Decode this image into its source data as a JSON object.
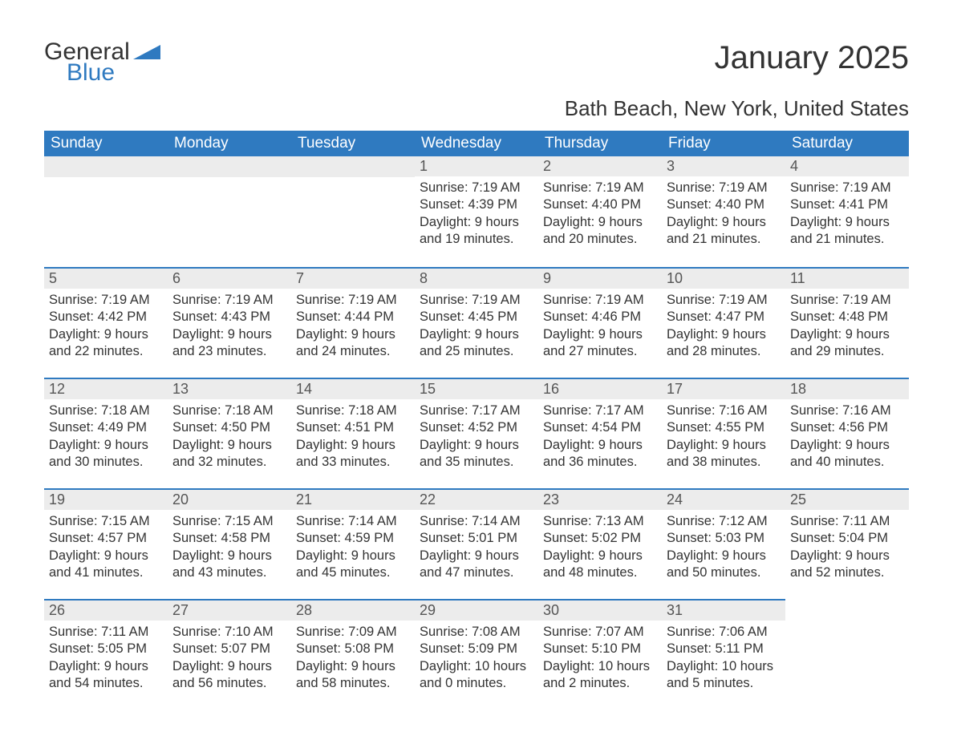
{
  "brand": {
    "general": "General",
    "blue": "Blue",
    "accent": "#2f7ac0"
  },
  "title": "January 2025",
  "subtitle": "Bath Beach, New York, United States",
  "weekdays": [
    "Sunday",
    "Monday",
    "Tuesday",
    "Wednesday",
    "Thursday",
    "Friday",
    "Saturday"
  ],
  "colors": {
    "header_bg": "#2f7ac0",
    "header_text": "#ffffff",
    "daynum_bg": "#ececec",
    "row_border": "#2f7ac0",
    "body_text": "#333333"
  },
  "weeks": [
    [
      null,
      null,
      null,
      {
        "n": "1",
        "sr": "7:19 AM",
        "ss": "4:39 PM",
        "d1": "Daylight: 9 hours",
        "d2": "and 19 minutes."
      },
      {
        "n": "2",
        "sr": "7:19 AM",
        "ss": "4:40 PM",
        "d1": "Daylight: 9 hours",
        "d2": "and 20 minutes."
      },
      {
        "n": "3",
        "sr": "7:19 AM",
        "ss": "4:40 PM",
        "d1": "Daylight: 9 hours",
        "d2": "and 21 minutes."
      },
      {
        "n": "4",
        "sr": "7:19 AM",
        "ss": "4:41 PM",
        "d1": "Daylight: 9 hours",
        "d2": "and 21 minutes."
      }
    ],
    [
      {
        "n": "5",
        "sr": "7:19 AM",
        "ss": "4:42 PM",
        "d1": "Daylight: 9 hours",
        "d2": "and 22 minutes."
      },
      {
        "n": "6",
        "sr": "7:19 AM",
        "ss": "4:43 PM",
        "d1": "Daylight: 9 hours",
        "d2": "and 23 minutes."
      },
      {
        "n": "7",
        "sr": "7:19 AM",
        "ss": "4:44 PM",
        "d1": "Daylight: 9 hours",
        "d2": "and 24 minutes."
      },
      {
        "n": "8",
        "sr": "7:19 AM",
        "ss": "4:45 PM",
        "d1": "Daylight: 9 hours",
        "d2": "and 25 minutes."
      },
      {
        "n": "9",
        "sr": "7:19 AM",
        "ss": "4:46 PM",
        "d1": "Daylight: 9 hours",
        "d2": "and 27 minutes."
      },
      {
        "n": "10",
        "sr": "7:19 AM",
        "ss": "4:47 PM",
        "d1": "Daylight: 9 hours",
        "d2": "and 28 minutes."
      },
      {
        "n": "11",
        "sr": "7:19 AM",
        "ss": "4:48 PM",
        "d1": "Daylight: 9 hours",
        "d2": "and 29 minutes."
      }
    ],
    [
      {
        "n": "12",
        "sr": "7:18 AM",
        "ss": "4:49 PM",
        "d1": "Daylight: 9 hours",
        "d2": "and 30 minutes."
      },
      {
        "n": "13",
        "sr": "7:18 AM",
        "ss": "4:50 PM",
        "d1": "Daylight: 9 hours",
        "d2": "and 32 minutes."
      },
      {
        "n": "14",
        "sr": "7:18 AM",
        "ss": "4:51 PM",
        "d1": "Daylight: 9 hours",
        "d2": "and 33 minutes."
      },
      {
        "n": "15",
        "sr": "7:17 AM",
        "ss": "4:52 PM",
        "d1": "Daylight: 9 hours",
        "d2": "and 35 minutes."
      },
      {
        "n": "16",
        "sr": "7:17 AM",
        "ss": "4:54 PM",
        "d1": "Daylight: 9 hours",
        "d2": "and 36 minutes."
      },
      {
        "n": "17",
        "sr": "7:16 AM",
        "ss": "4:55 PM",
        "d1": "Daylight: 9 hours",
        "d2": "and 38 minutes."
      },
      {
        "n": "18",
        "sr": "7:16 AM",
        "ss": "4:56 PM",
        "d1": "Daylight: 9 hours",
        "d2": "and 40 minutes."
      }
    ],
    [
      {
        "n": "19",
        "sr": "7:15 AM",
        "ss": "4:57 PM",
        "d1": "Daylight: 9 hours",
        "d2": "and 41 minutes."
      },
      {
        "n": "20",
        "sr": "7:15 AM",
        "ss": "4:58 PM",
        "d1": "Daylight: 9 hours",
        "d2": "and 43 minutes."
      },
      {
        "n": "21",
        "sr": "7:14 AM",
        "ss": "4:59 PM",
        "d1": "Daylight: 9 hours",
        "d2": "and 45 minutes."
      },
      {
        "n": "22",
        "sr": "7:14 AM",
        "ss": "5:01 PM",
        "d1": "Daylight: 9 hours",
        "d2": "and 47 minutes."
      },
      {
        "n": "23",
        "sr": "7:13 AM",
        "ss": "5:02 PM",
        "d1": "Daylight: 9 hours",
        "d2": "and 48 minutes."
      },
      {
        "n": "24",
        "sr": "7:12 AM",
        "ss": "5:03 PM",
        "d1": "Daylight: 9 hours",
        "d2": "and 50 minutes."
      },
      {
        "n": "25",
        "sr": "7:11 AM",
        "ss": "5:04 PM",
        "d1": "Daylight: 9 hours",
        "d2": "and 52 minutes."
      }
    ],
    [
      {
        "n": "26",
        "sr": "7:11 AM",
        "ss": "5:05 PM",
        "d1": "Daylight: 9 hours",
        "d2": "and 54 minutes."
      },
      {
        "n": "27",
        "sr": "7:10 AM",
        "ss": "5:07 PM",
        "d1": "Daylight: 9 hours",
        "d2": "and 56 minutes."
      },
      {
        "n": "28",
        "sr": "7:09 AM",
        "ss": "5:08 PM",
        "d1": "Daylight: 9 hours",
        "d2": "and 58 minutes."
      },
      {
        "n": "29",
        "sr": "7:08 AM",
        "ss": "5:09 PM",
        "d1": "Daylight: 10 hours",
        "d2": "and 0 minutes."
      },
      {
        "n": "30",
        "sr": "7:07 AM",
        "ss": "5:10 PM",
        "d1": "Daylight: 10 hours",
        "d2": "and 2 minutes."
      },
      {
        "n": "31",
        "sr": "7:06 AM",
        "ss": "5:11 PM",
        "d1": "Daylight: 10 hours",
        "d2": "and 5 minutes."
      },
      null
    ]
  ],
  "labels": {
    "sunrise": "Sunrise: ",
    "sunset": "Sunset: "
  }
}
